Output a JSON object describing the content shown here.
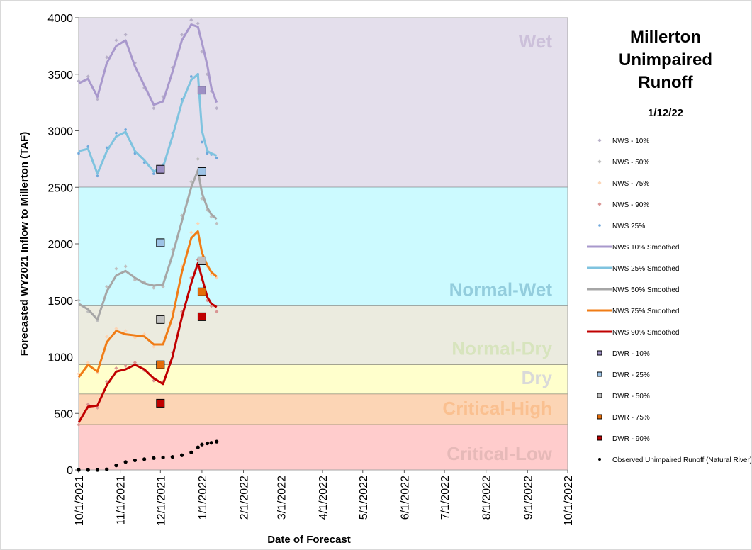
{
  "chart_data": {
    "type": "line",
    "title": "Millerton Unimpaired Runoff",
    "subtitle": "1/12/22",
    "y_label": "Forecasted WY2021 Inflow to Millerton (TAF)",
    "x_label": "Date of Forecast",
    "xlim": [
      "10/1/2021",
      "10/1/2022"
    ],
    "xticks": [
      "10/1/2021",
      "11/1/2021",
      "12/1/2021",
      "1/1/2022",
      "2/1/2022",
      "3/1/2022",
      "4/1/2022",
      "5/1/2022",
      "6/1/2022",
      "7/1/2022",
      "8/1/2022",
      "9/1/2022",
      "10/1/2022"
    ],
    "ylim": [
      0,
      4000
    ],
    "yticks": [
      0,
      500,
      1000,
      1500,
      2000,
      2500,
      3000,
      3500,
      4000
    ],
    "zones": [
      {
        "label": "Wet",
        "min": 2500,
        "max": 4000,
        "color": "#e4dfec",
        "text_color": "#ccc0da"
      },
      {
        "label": "Normal-Wet",
        "min": 1450,
        "max": 2500,
        "color": "#ccfaff",
        "text_color": "#93cddd"
      },
      {
        "label": "Normal-Dry",
        "min": 930,
        "max": 1450,
        "color": "#ebebdf",
        "text_color": "#d7e4bd"
      },
      {
        "label": "Dry",
        "min": 670,
        "max": 930,
        "color": "#ffffcc",
        "text_color": "#d9d9d9"
      },
      {
        "label": "Critical-High",
        "min": 400,
        "max": 670,
        "color": "#fcd5b5",
        "text_color": "#fac090"
      },
      {
        "label": "Critical-Low",
        "min": 0,
        "max": 400,
        "color": "#ffcccc",
        "text_color": "#e6b9b8"
      }
    ],
    "x": [
      "10/1/2021",
      "10/8/2021",
      "10/15/2021",
      "10/22/2021",
      "10/29/2021",
      "11/5/2021",
      "11/12/2021",
      "11/19/2021",
      "11/26/2021",
      "12/3/2021",
      "12/10/2021",
      "12/17/2021",
      "12/24/2021",
      "12/29/2021",
      "1/1/2022",
      "1/5/2022",
      "1/8/2022",
      "1/12/2022"
    ],
    "series": [
      {
        "name": "NWS - 10%",
        "marker": "diamond",
        "color": "#b8b0c8",
        "values": [
          3440,
          3480,
          3280,
          3650,
          3800,
          3850,
          3600,
          3380,
          3200,
          3300,
          3560,
          3850,
          3980,
          3950,
          3700,
          3500,
          3350,
          3200
        ]
      },
      {
        "name": "NWS - 50%",
        "marker": "diamond",
        "color": "#bfbfbf",
        "values": [
          1500,
          1400,
          1320,
          1620,
          1780,
          1800,
          1680,
          1660,
          1610,
          1620,
          1950,
          2250,
          2550,
          2750,
          2400,
          2300,
          2240,
          2180
        ]
      },
      {
        "name": "NWS - 75%",
        "marker": "diamond",
        "color": "#fcd5b5",
        "values": [
          850,
          950,
          860,
          1180,
          1250,
          1230,
          1170,
          1200,
          1090,
          1130,
          1400,
          1800,
          2100,
          2180,
          1880,
          1800,
          1730,
          1700
        ]
      },
      {
        "name": "NWS - 90%",
        "marker": "diamond",
        "color": "#d99694",
        "values": [
          400,
          580,
          550,
          780,
          900,
          920,
          950,
          880,
          790,
          780,
          1040,
          1400,
          1700,
          1860,
          1680,
          1500,
          1450,
          1400
        ]
      },
      {
        "name": "NWS 25%",
        "marker": "dot",
        "color": "#6fa8dc",
        "values": [
          2800,
          2860,
          2600,
          2850,
          2980,
          3010,
          2800,
          2720,
          2620,
          2700,
          2980,
          3280,
          3480,
          3500,
          2900,
          2800,
          2790,
          2760
        ]
      },
      {
        "name": "NWS 10% Smoothed",
        "marker": "line",
        "color": "#a898cc",
        "values": [
          3420,
          3460,
          3300,
          3600,
          3750,
          3800,
          3570,
          3400,
          3230,
          3260,
          3520,
          3800,
          3940,
          3920,
          3780,
          3580,
          3380,
          3250
        ]
      },
      {
        "name": "NWS 25% Smoothed",
        "marker": "line",
        "color": "#7fc3df",
        "values": [
          2820,
          2840,
          2620,
          2820,
          2950,
          2990,
          2820,
          2740,
          2640,
          2680,
          2950,
          3250,
          3450,
          3500,
          3000,
          2820,
          2800,
          2780
        ]
      },
      {
        "name": "NWS 50% Smoothed",
        "marker": "line",
        "color": "#a6a6a6",
        "values": [
          1470,
          1420,
          1330,
          1580,
          1720,
          1760,
          1700,
          1650,
          1630,
          1640,
          1900,
          2200,
          2500,
          2650,
          2450,
          2320,
          2260,
          2220
        ]
      },
      {
        "name": "NWS 75% Smoothed",
        "marker": "line",
        "color": "#f07c16",
        "values": [
          820,
          930,
          870,
          1130,
          1230,
          1200,
          1190,
          1180,
          1110,
          1110,
          1350,
          1750,
          2050,
          2110,
          1920,
          1810,
          1750,
          1710
        ]
      },
      {
        "name": "NWS 90% Smoothed",
        "marker": "line",
        "color": "#c00000",
        "values": [
          420,
          560,
          570,
          750,
          870,
          890,
          930,
          890,
          810,
          760,
          1000,
          1350,
          1650,
          1830,
          1700,
          1530,
          1470,
          1440
        ]
      },
      {
        "name": "DWR - 10%",
        "marker": "square",
        "color": "#9d8fc4",
        "x": [
          "12/1/2021",
          "1/1/2022"
        ],
        "values": [
          2660,
          3360
        ]
      },
      {
        "name": "DWR - 25%",
        "marker": "square",
        "color": "#9dc3e6",
        "x": [
          "12/1/2021",
          "1/1/2022"
        ],
        "values": [
          2010,
          2640
        ]
      },
      {
        "name": "DWR - 50%",
        "marker": "square",
        "color": "#c0c0c0",
        "x": [
          "12/1/2021",
          "1/1/2022"
        ],
        "values": [
          1330,
          1850
        ]
      },
      {
        "name": "DWR - 75%",
        "marker": "square",
        "color": "#e36c09",
        "x": [
          "12/1/2021",
          "1/1/2022"
        ],
        "values": [
          930,
          1575
        ]
      },
      {
        "name": "DWR - 90%",
        "marker": "square",
        "color": "#c00000",
        "x": [
          "12/1/2021",
          "1/1/2022"
        ],
        "values": [
          590,
          1355
        ]
      },
      {
        "name": "Observed Unimpaired Runoff (Natural River)",
        "marker": "blackdot",
        "color": "#000000",
        "values": [
          0,
          0,
          0,
          5,
          40,
          70,
          85,
          95,
          105,
          110,
          115,
          130,
          155,
          200,
          225,
          235,
          240,
          250
        ]
      }
    ]
  }
}
